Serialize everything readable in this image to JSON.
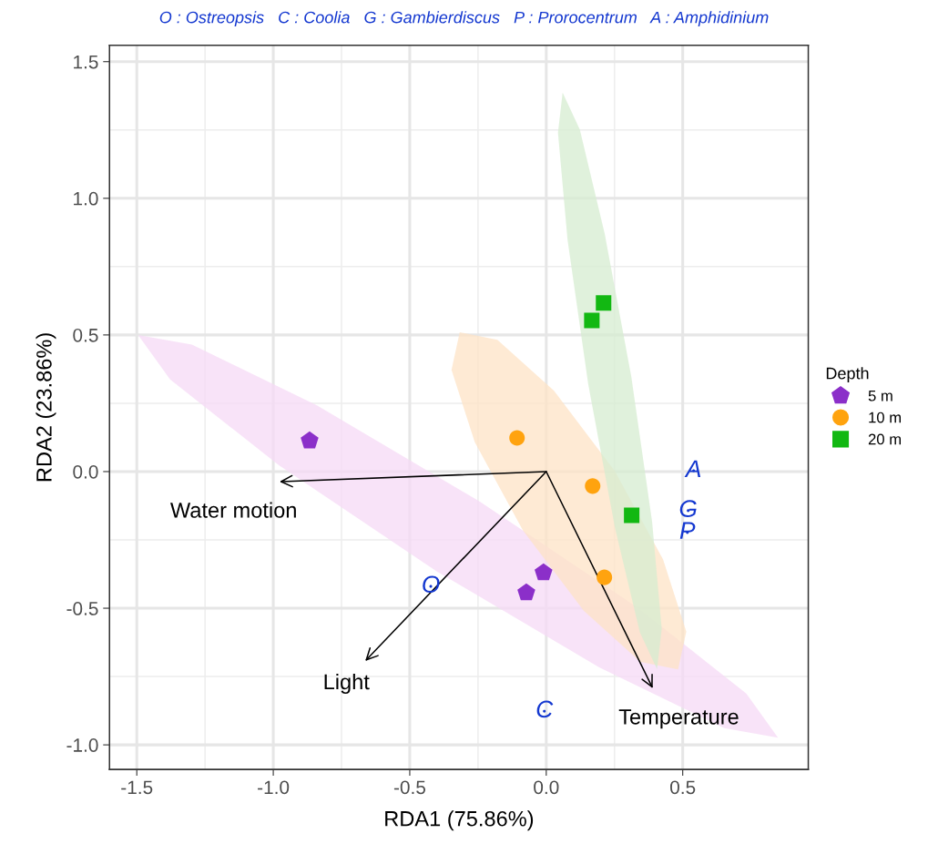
{
  "chart_data": {
    "type": "scatter",
    "title": "O : Ostreopsis   C : Coolia   G : Gambierdiscus   P : Prorocentrum   A : Amphidinium",
    "xlabel": "RDA1 (75.86%)",
    "ylabel": "RDA2 (23.86%)",
    "legend_title": "Depth",
    "legend": "right",
    "grid": true,
    "xlim": [
      -1.6,
      0.96
    ],
    "ylim": [
      -1.09,
      1.56
    ],
    "xticks": [
      {
        "value": -1.5,
        "label": "-1.5"
      },
      {
        "value": -1.0,
        "label": "-1.0"
      },
      {
        "value": -0.5,
        "label": "-0.5"
      },
      {
        "value": 0.0,
        "label": "0.0"
      },
      {
        "value": 0.5,
        "label": "0.5"
      }
    ],
    "yticks": [
      {
        "value": -1.0,
        "label": "-1.0"
      },
      {
        "value": -0.5,
        "label": "-0.5"
      },
      {
        "value": 0.0,
        "label": "0.0"
      },
      {
        "value": 0.5,
        "label": "0.5"
      },
      {
        "value": 1.0,
        "label": "1.0"
      },
      {
        "value": 1.5,
        "label": "1.5"
      }
    ],
    "series": [
      {
        "type": "area",
        "color": "#f5d9f5",
        "x": [
          0.849,
          0.732,
          0.332,
          -0.243,
          -0.84,
          -1.298,
          -1.495,
          -1.378,
          -0.978,
          -0.403,
          0.194,
          0.652
        ],
        "values": [
          -0.974,
          -0.811,
          -0.496,
          -0.11,
          0.242,
          0.465,
          0.5,
          0.337,
          0.022,
          -0.364,
          -0.716,
          -0.939
        ]
      },
      {
        "type": "area",
        "color": "#fde3c6",
        "x": [
          0.483,
          0.513,
          0.428,
          0.251,
          0.028,
          -0.179,
          -0.317,
          -0.347,
          -0.262,
          -0.085,
          0.138,
          0.345
        ],
        "values": [
          -0.724,
          -0.586,
          -0.322,
          0.002,
          0.296,
          0.482,
          0.51,
          0.372,
          0.108,
          -0.216,
          -0.51,
          -0.696
        ]
      },
      {
        "type": "area",
        "color": "#d5ecd0",
        "x": [
          0.406,
          0.423,
          0.388,
          0.312,
          0.214,
          0.123,
          0.06,
          0.043,
          0.078,
          0.154,
          0.252,
          0.343
        ],
        "values": [
          -0.723,
          -0.576,
          -0.185,
          0.345,
          0.871,
          1.252,
          1.387,
          1.24,
          0.849,
          0.319,
          -0.207,
          -0.588
        ]
      },
      {
        "type": "line",
        "name": "Water motion",
        "color": "#000000",
        "x": [
          0,
          -0.977
        ],
        "values": [
          0,
          -0.037
        ]
      },
      {
        "type": "line",
        "name": "Light",
        "color": "#000000",
        "x": [
          0,
          -0.663
        ],
        "values": [
          0,
          -0.693
        ]
      },
      {
        "type": "line",
        "name": "Temperature",
        "color": "#000000",
        "x": [
          0,
          0.39
        ],
        "values": [
          0,
          -0.793
        ]
      },
      {
        "name": "5 m",
        "color": "#8b2fc9",
        "x": [
          -0.867,
          -0.073,
          -0.01
        ],
        "values": [
          0.113,
          -0.443,
          -0.37
        ]
      },
      {
        "name": "10 m",
        "marker": "circle",
        "color": "#ffa30f",
        "x": [
          -0.107,
          0.17,
          0.213
        ],
        "values": [
          0.123,
          -0.053,
          -0.387
        ]
      },
      {
        "name": "20 m",
        "marker": "square",
        "color": "#12b812",
        "x": [
          0.21,
          0.167,
          0.313
        ],
        "values": [
          0.617,
          0.553,
          -0.16
        ]
      },
      {
        "marker": "circle",
        "color": "#1438d0",
        "x": [
          -0.423,
          -0.007,
          0.52,
          0.517,
          0.54
        ],
        "values": [
          -0.42,
          -0.877,
          -0.143,
          -0.223,
          0.003
        ],
        "value_labels": [
          "O",
          "C",
          "G",
          "P",
          "A"
        ]
      }
    ]
  }
}
